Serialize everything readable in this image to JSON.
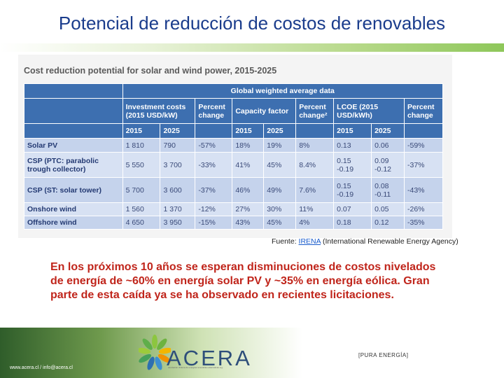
{
  "slide": {
    "title": "Potencial de reducción de costos de renovables"
  },
  "table": {
    "heading": "Cost reduction potential for solar and wind power, 2015-2025",
    "super_header": "Global weighted average data",
    "headers": {
      "investment_costs": "Investment costs (2015 USD/kW)",
      "percent_change_1": "Percent change",
      "capacity_factor": "Capacity factor",
      "percent_change_2": "Percent change²",
      "lcoe": "LCOE (2015 USD/kWh)",
      "percent_change_3": "Percent change"
    },
    "years": {
      "y2015": "2015",
      "y2025": "2025"
    },
    "rows": [
      {
        "label": "Solar PV",
        "inv2015": "1 810",
        "inv2025": "790",
        "pc1": "-57%",
        "cf2015": "18%",
        "cf2025": "19%",
        "pc2": "8%",
        "lcoe2015": "0.13",
        "lcoe2025": "0.06",
        "pc3": "-59%"
      },
      {
        "label": "CSP (PTC: parabolic trough collector)",
        "inv2015": "5 550",
        "inv2025": "3 700",
        "pc1": "-33%",
        "cf2015": "41%",
        "cf2025": "45%",
        "pc2": "8.4%",
        "lcoe2015": "0.15 -0.19",
        "lcoe2025": "0.09 -0.12",
        "pc3": "-37%"
      },
      {
        "label": "CSP (ST: solar tower)",
        "inv2015": "5 700",
        "inv2025": "3 600",
        "pc1": "-37%",
        "cf2015": "46%",
        "cf2025": "49%",
        "pc2": "7.6%",
        "lcoe2015": "0.15 -0.19",
        "lcoe2025": "0.08 -0.11",
        "pc3": "-43%"
      },
      {
        "label": "Onshore wind",
        "inv2015": "1 560",
        "inv2025": "1 370",
        "pc1": "-12%",
        "cf2015": "27%",
        "cf2025": "30%",
        "pc2": "11%",
        "lcoe2015": "0.07",
        "lcoe2025": "0.05",
        "pc3": "-26%"
      },
      {
        "label": "Offshore wind",
        "inv2015": "4 650",
        "inv2025": "3 950",
        "pc1": "-15%",
        "cf2015": "43%",
        "cf2025": "45%",
        "pc2": "4%",
        "lcoe2015": "0.18",
        "lcoe2025": "0.12",
        "pc3": "-35%"
      }
    ]
  },
  "source": {
    "prefix": "Fuente: ",
    "link": "IRENA",
    "suffix": " (International Renewable Energy Agency)"
  },
  "body_text": "En los próximos 10 años se esperan disminuciones de costos nivelados de energía de ~60% en energía solar PV y ~35% en energía eólica. Gran parte de esta caída ya se ha observado en recientes licitaciones.",
  "footer": {
    "contact": "www.acera.cl / info@acera.cl",
    "logo_text": "ACERA",
    "logo_sub": "asociación chilena de energías renovables alternativas a.g.",
    "tagline": "[PURA ENERGÍA]"
  },
  "colors": {
    "title": "#1a3c8c",
    "table_header": "#3d6fb0",
    "table_row": "#c5d3ec",
    "body_text": "#c0251b",
    "logo": "#2d4e7a"
  }
}
